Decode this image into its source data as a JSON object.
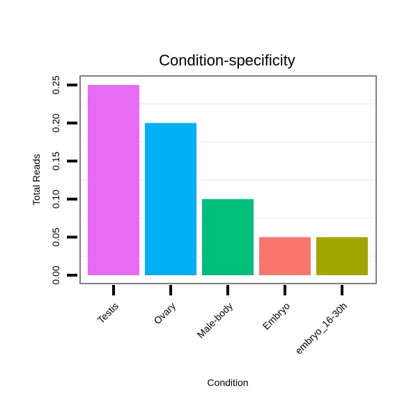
{
  "chart_data": {
    "type": "bar",
    "title": "Condition-specificity",
    "xlabel": "Condition",
    "ylabel": "Total Reads",
    "categories": [
      "Testis",
      "Ovary",
      "Male-body",
      "Embryo",
      "embryo_16-30h"
    ],
    "values": [
      0.25,
      0.2,
      0.1,
      0.05,
      0.05
    ],
    "colors": [
      "#E76BF3",
      "#00B0F6",
      "#00BF7D",
      "#F8766D",
      "#A3A500"
    ],
    "ylim": [
      0,
      0.25
    ],
    "yticks": [
      "0.00",
      "0.05",
      "0.10",
      "0.15",
      "0.20",
      "0.25"
    ],
    "grid": true,
    "legend": "none"
  }
}
